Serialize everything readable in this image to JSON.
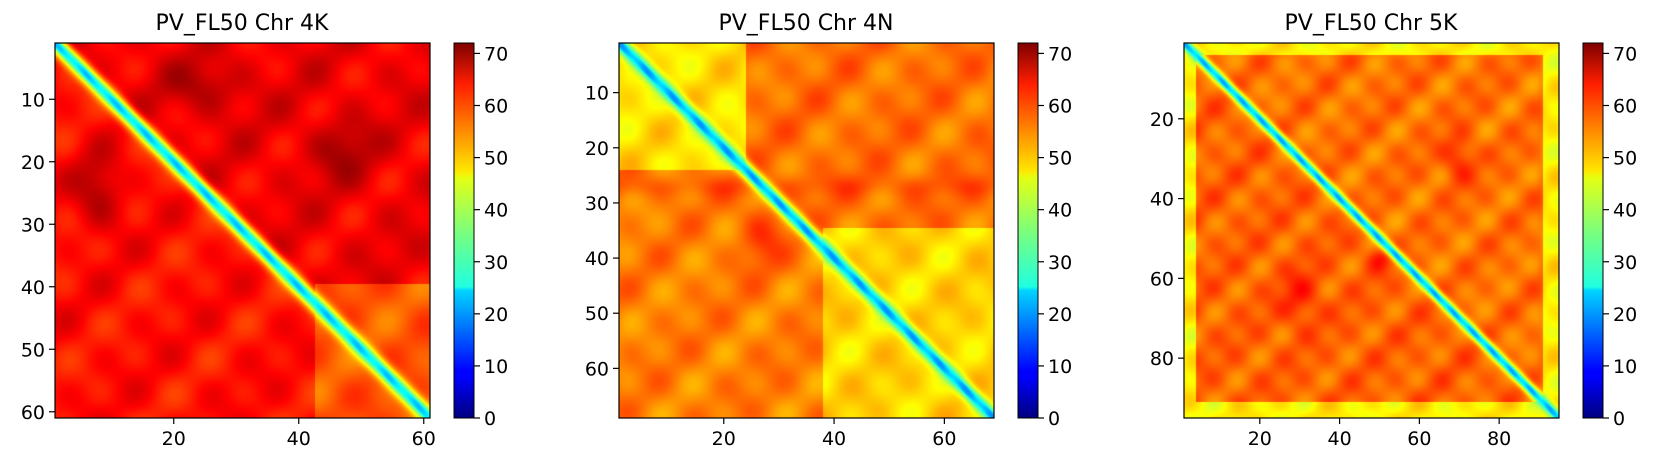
{
  "chart_data": [
    {
      "type": "heatmap",
      "title": "PV_FL50 Chr 4K",
      "n": 61,
      "xlim": [
        1,
        61
      ],
      "ylim": [
        61,
        1
      ],
      "xticks": [
        20,
        40,
        60
      ],
      "yticks": [
        10,
        20,
        30,
        40,
        50,
        60
      ],
      "colorbar": {
        "vmin": 0,
        "vmax": 72,
        "ticks": [
          0,
          10,
          20,
          30,
          40,
          50,
          60,
          70
        ],
        "colormap": "jet"
      },
      "diagonal_value": 27,
      "mean_off_diagonal": 62,
      "description_values": {
        "upper_region": 64,
        "lower_region": 62,
        "lower_right_block": 57,
        "hotspot_max": 69
      }
    },
    {
      "type": "heatmap",
      "title": "PV_FL50 Chr 4N",
      "n": 69,
      "xlim": [
        1,
        69
      ],
      "ylim": [
        69,
        1
      ],
      "xticks": [
        20,
        40,
        60
      ],
      "yticks": [
        10,
        20,
        30,
        40,
        50,
        60
      ],
      "colorbar": {
        "vmin": 0,
        "vmax": 72,
        "ticks": [
          0,
          10,
          20,
          30,
          40,
          50,
          60,
          70
        ],
        "colormap": "jet"
      },
      "diagonal_value": 24,
      "mean_off_diagonal": 52,
      "description_values": {
        "upper_region": 55,
        "lower_region": 54,
        "lower_right_block": 45,
        "hotspot_max": 59
      }
    },
    {
      "type": "heatmap",
      "title": "PV_FL50 Chr 5K",
      "n": 95,
      "xlim": [
        1,
        95
      ],
      "ylim": [
        95,
        1
      ],
      "xticks": [
        20,
        40,
        60,
        80
      ],
      "yticks": [
        20,
        40,
        60,
        80
      ],
      "colorbar": {
        "vmin": 0,
        "vmax": 72,
        "ticks": [
          0,
          10,
          20,
          30,
          40,
          50,
          60,
          70
        ],
        "colormap": "jet"
      },
      "diagonal_value": 25,
      "mean_off_diagonal": 54,
      "description_values": {
        "upper_region": 55,
        "lower_region": 56,
        "edge_band": 46,
        "hotspot_max": 61
      }
    }
  ]
}
